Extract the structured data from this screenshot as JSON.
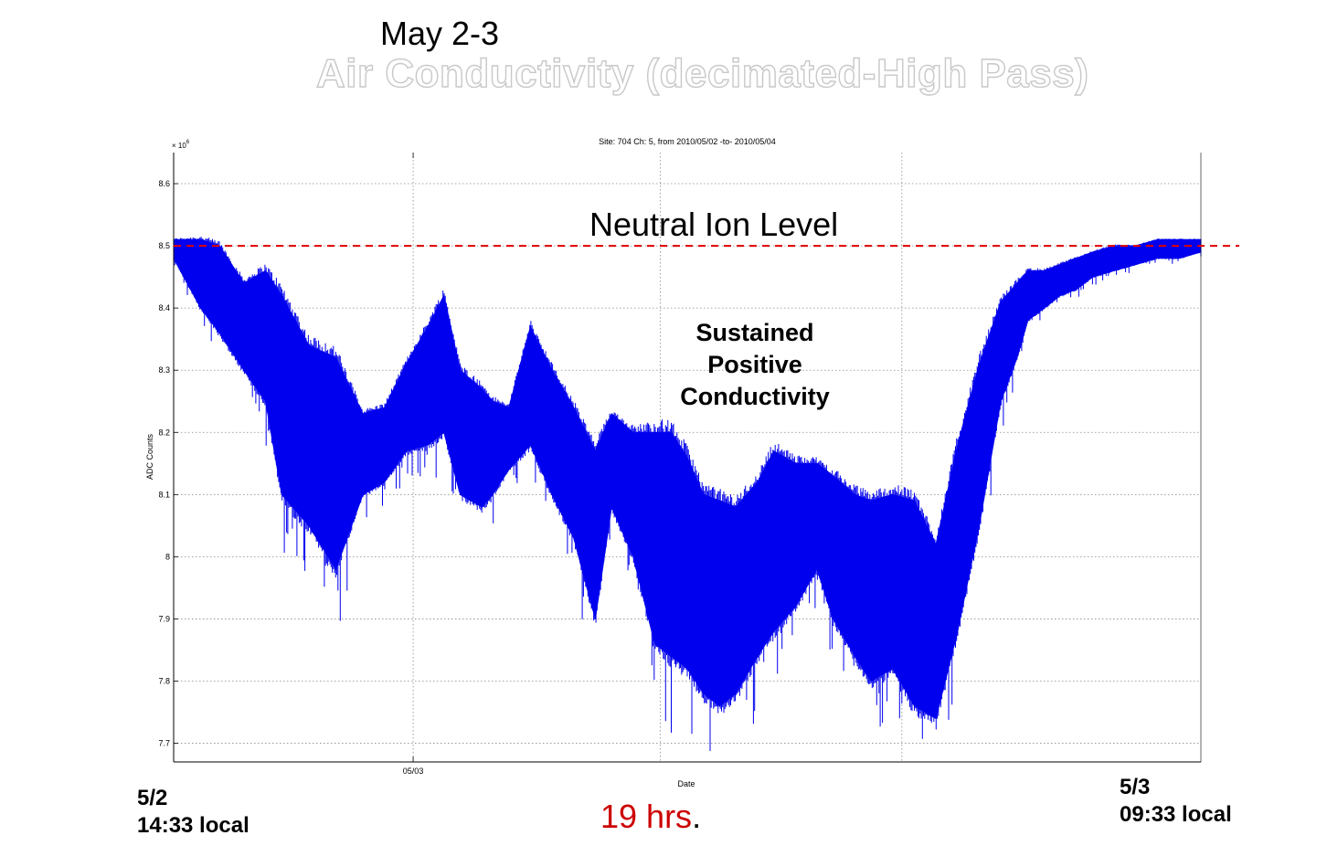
{
  "captions": {
    "top": "May 2-3",
    "headline": "Air Conductivity (decimated-High Pass)",
    "start_line1": "5/2",
    "start_line2": "14:33 local",
    "end_line1": "5/3",
    "end_line2": "09:33 local",
    "duration": "19 hrs",
    "duration_suffix": ".",
    "neutral_label": "Neutral Ion Level",
    "sustained": "Sustained Positive Conductivity"
  },
  "chart_data": {
    "type": "line",
    "title": "Site: 704 Ch: 5, from 2010/05/02 -to- 2010/05/04",
    "xlabel": "Date",
    "ylabel": "ADC Counts",
    "y_multiplier": "× 10^6",
    "y_multiplier_base": "× 10",
    "y_multiplier_exp": "6",
    "x_unit": "hours since start (5/2 14:33 local)",
    "xlim": [
      0,
      19
    ],
    "ylim": [
      7.67,
      8.65
    ],
    "yticks": [
      7.7,
      7.8,
      7.9,
      8,
      8.1,
      8.2,
      8.3,
      8.4,
      8.5,
      8.6
    ],
    "ytick_labels": [
      "7.7",
      "7.8",
      "7.9",
      "8",
      "8.1",
      "8.2",
      "8.3",
      "8.4",
      "8.5",
      "8.6"
    ],
    "x_gridlines": [
      4.43,
      9.0,
      13.47
    ],
    "x_ticks": [
      {
        "x": 4.43,
        "label": "05/03"
      }
    ],
    "grid": true,
    "series_color": "#0000ee",
    "reference_line": {
      "value": 8.5,
      "color": "#e00000",
      "style": "dashed"
    },
    "series": [
      {
        "name": "",
        "x": [
          0.0,
          0.5,
          0.85,
          1.3,
          1.7,
          2.0,
          2.5,
          3.0,
          3.5,
          3.9,
          4.3,
          4.7,
          5.0,
          5.3,
          5.7,
          5.9,
          6.2,
          6.6,
          7.0,
          7.4,
          7.8,
          8.1,
          8.5,
          8.9,
          9.2,
          9.5,
          9.8,
          10.1,
          10.4,
          10.8,
          11.1,
          11.5,
          11.9,
          12.2,
          12.6,
          12.9,
          13.3,
          13.7,
          14.1,
          14.5,
          14.9,
          15.3,
          15.6,
          15.8,
          16.1,
          16.4,
          16.7,
          17.0,
          17.4,
          17.8,
          18.2,
          18.6,
          19.0
        ],
        "upper": [
          8.51,
          8.51,
          8.5,
          8.44,
          8.46,
          8.42,
          8.34,
          8.32,
          8.23,
          8.24,
          8.31,
          8.37,
          8.42,
          8.3,
          8.27,
          8.25,
          8.24,
          8.37,
          8.3,
          8.24,
          8.17,
          8.23,
          8.2,
          8.2,
          8.2,
          8.16,
          8.1,
          8.09,
          8.08,
          8.12,
          8.17,
          8.15,
          8.15,
          8.13,
          8.1,
          8.09,
          8.1,
          8.09,
          8.02,
          8.18,
          8.31,
          8.41,
          8.44,
          8.46,
          8.46,
          8.47,
          8.48,
          8.49,
          8.5,
          8.5,
          8.51,
          8.51,
          8.51
        ],
        "lower": [
          8.48,
          8.4,
          8.36,
          8.3,
          8.25,
          8.1,
          8.05,
          7.98,
          8.1,
          8.12,
          8.17,
          8.18,
          8.2,
          8.1,
          8.08,
          8.1,
          8.14,
          8.18,
          8.1,
          8.03,
          7.9,
          8.08,
          8.0,
          7.86,
          7.84,
          7.82,
          7.78,
          7.76,
          7.78,
          7.84,
          7.88,
          7.92,
          7.98,
          7.9,
          7.84,
          7.8,
          7.82,
          7.76,
          7.74,
          7.88,
          8.05,
          8.25,
          8.32,
          8.38,
          8.4,
          8.42,
          8.43,
          8.45,
          8.46,
          8.47,
          8.48,
          8.48,
          8.49
        ]
      }
    ]
  }
}
